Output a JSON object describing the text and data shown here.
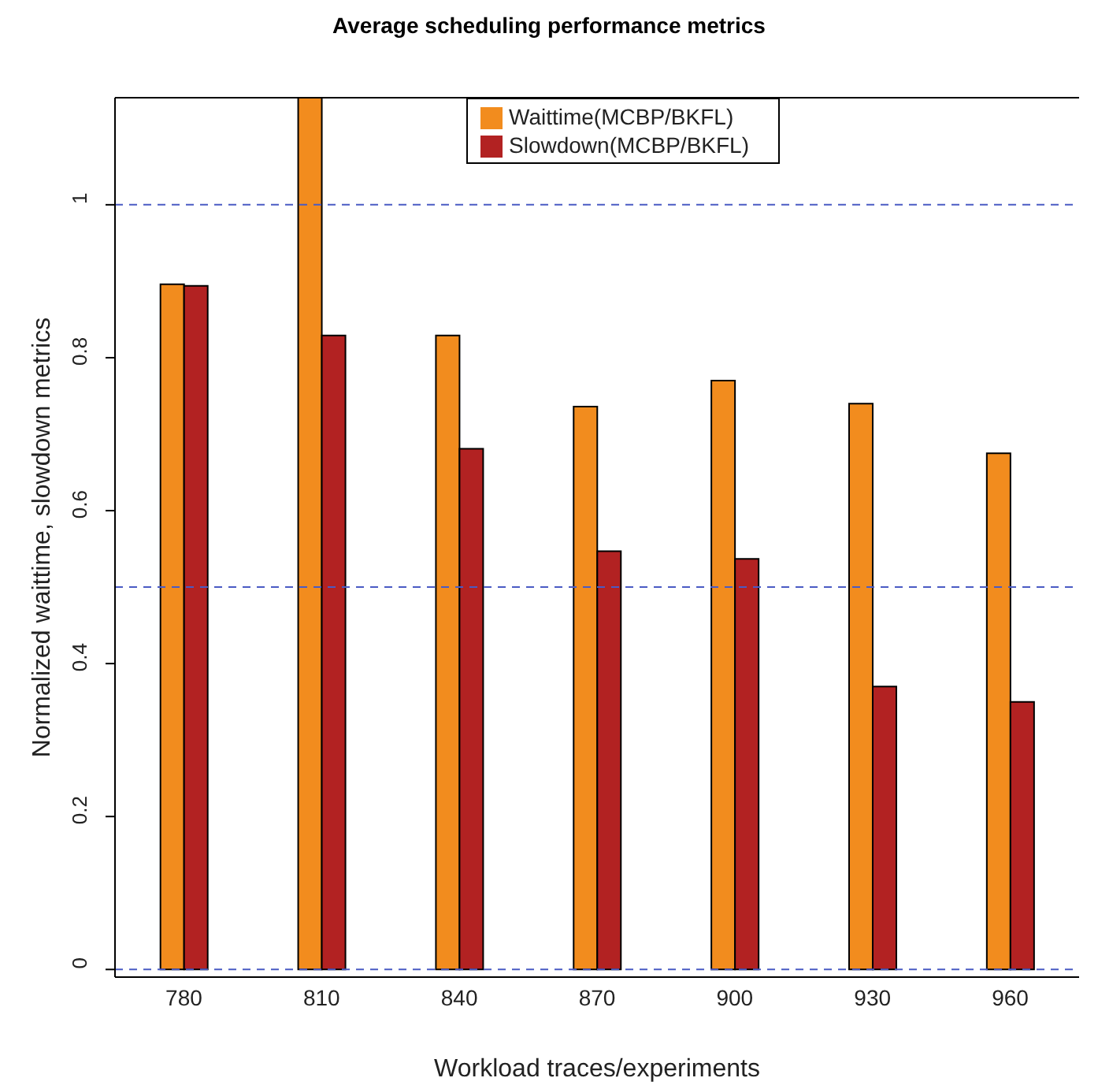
{
  "chart_data": {
    "type": "bar",
    "title": "Average scheduling performance metrics",
    "xlabel": "Workload traces/experiments",
    "ylabel": "Normalized waittime, slowdown metrics",
    "categories": [
      "780",
      "810",
      "840",
      "870",
      "900",
      "930",
      "960"
    ],
    "series": [
      {
        "name": "Waittime(MCBP/BKFL)",
        "color": "#f28c1e",
        "values": [
          0.896,
          1.14,
          0.829,
          0.736,
          0.77,
          0.74,
          0.675
        ]
      },
      {
        "name": "Slowdown(MCBP/BKFL)",
        "color": "#b22222",
        "values": [
          0.894,
          0.829,
          0.681,
          0.547,
          0.537,
          0.37,
          0.35
        ]
      }
    ],
    "ylim": [
      -0.01,
      1.14
    ],
    "yticks": [
      0,
      0.2,
      0.4,
      0.6,
      0.8,
      1
    ],
    "ref_lines": [
      {
        "axis": "y",
        "value": 0,
        "color": "#4a5bc4",
        "line_style": "dashed"
      },
      {
        "axis": "y",
        "value": 0.5,
        "color": "#4a5bc4",
        "line_style": "dashed"
      },
      {
        "axis": "y",
        "value": 1,
        "color": "#4a5bc4",
        "line_style": "dashed"
      }
    ],
    "legend": "top",
    "grid": false
  }
}
